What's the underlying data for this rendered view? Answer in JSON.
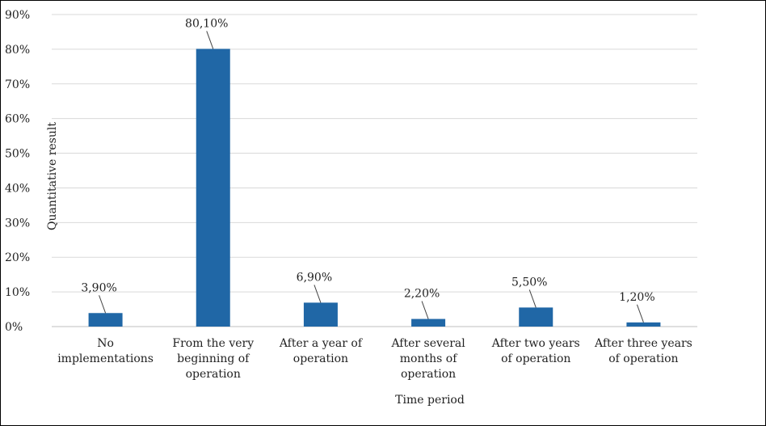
{
  "chart_data": {
    "type": "bar",
    "title": "",
    "xlabel": "Time period",
    "ylabel": "Quantitative result",
    "ylim": [
      0,
      90
    ],
    "yticks": [
      "0%",
      "10%",
      "20%",
      "30%",
      "40%",
      "50%",
      "60%",
      "70%",
      "80%",
      "90%"
    ],
    "categories": [
      [
        "No",
        "implementations"
      ],
      [
        "From the very",
        "beginning of",
        "operation"
      ],
      [
        "After a year of",
        "operation"
      ],
      [
        "After several",
        "months of",
        "operation"
      ],
      [
        "After two years",
        "of operation"
      ],
      [
        "After three years",
        "of operation"
      ]
    ],
    "values": [
      3.9,
      80.1,
      6.9,
      2.2,
      5.5,
      1.2
    ],
    "data_labels": [
      "3,90%",
      "80,10%",
      "6,90%",
      "2,20%",
      "5,50%",
      "1,20%"
    ],
    "bar_color": "#2067A6",
    "grid": true,
    "legend": "none"
  }
}
